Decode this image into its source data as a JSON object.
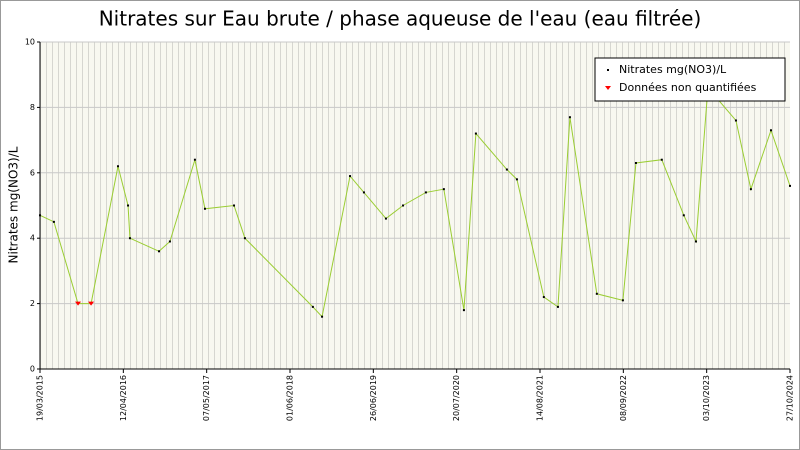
{
  "chart_data": {
    "type": "line",
    "title": "Nitrates sur Eau brute / phase aqueuse de l'eau (eau filtrée)",
    "y_label": "Nitrates mg(NO3)/L",
    "x": [
      "19/03/2015",
      "23/05/2015",
      "13/09/2015",
      "13/11/2015",
      "18/03/2016",
      "04/05/2016",
      "13/05/2016",
      "26/09/2016",
      "16/11/2016",
      "13/03/2017",
      "29/04/2017",
      "12/09/2017",
      "02/11/2017",
      "16/09/2018",
      "29/10/2018",
      "09/03/2019",
      "13/05/2019",
      "24/08/2019",
      "12/11/2019",
      "27/02/2020",
      "21/05/2020",
      "23/08/2020",
      "18/10/2020",
      "12/03/2021",
      "28/04/2021",
      "01/09/2021",
      "06/11/2021",
      "01/01/2022",
      "07/05/2022",
      "06/09/2022",
      "06/11/2022",
      "07/03/2023",
      "18/06/2023",
      "14/08/2023",
      "09/10/2023",
      "17/02/2024",
      "27/04/2024",
      "30/07/2024",
      "27/10/2024"
    ],
    "series": [
      {
        "name": "Nitrates mg(NO3)/L",
        "color": "#9acd32",
        "marker_color": "#000000",
        "values": [
          4.7,
          4.5,
          null,
          null,
          6.2,
          5.0,
          4.0,
          3.6,
          3.9,
          6.4,
          4.9,
          5.0,
          4.0,
          1.9,
          1.6,
          5.9,
          5.4,
          4.6,
          5.0,
          5.4,
          5.5,
          1.8,
          7.2,
          6.1,
          5.8,
          2.2,
          1.9,
          7.7,
          2.3,
          2.1,
          6.3,
          6.4,
          4.7,
          3.9,
          8.6,
          7.6,
          5.5,
          7.3,
          5.6
        ]
      },
      {
        "name": "Données non quantifiées",
        "color": "#ff0000",
        "values": [
          null,
          null,
          2.0,
          2.0,
          null,
          null,
          null,
          null,
          null,
          null,
          null,
          null,
          null,
          null,
          null,
          null,
          null,
          null,
          null,
          null,
          null,
          null,
          null,
          null,
          null,
          null,
          null,
          null,
          null,
          null,
          null,
          null,
          null,
          null,
          null,
          null,
          null,
          null,
          null
        ]
      }
    ],
    "xlim": [
      "19/03/2015",
      "27/10/2024"
    ],
    "xticks": [
      "19/03/2015",
      "12/04/2016",
      "07/05/2017",
      "01/06/2018",
      "26/06/2019",
      "20/07/2020",
      "14/08/2021",
      "08/09/2022",
      "03/10/2023",
      "27/10/2024"
    ],
    "ylim": [
      0,
      10
    ],
    "yticks": [
      0,
      2,
      4,
      6,
      8,
      10
    ],
    "grid": true,
    "legend": "top-right"
  }
}
